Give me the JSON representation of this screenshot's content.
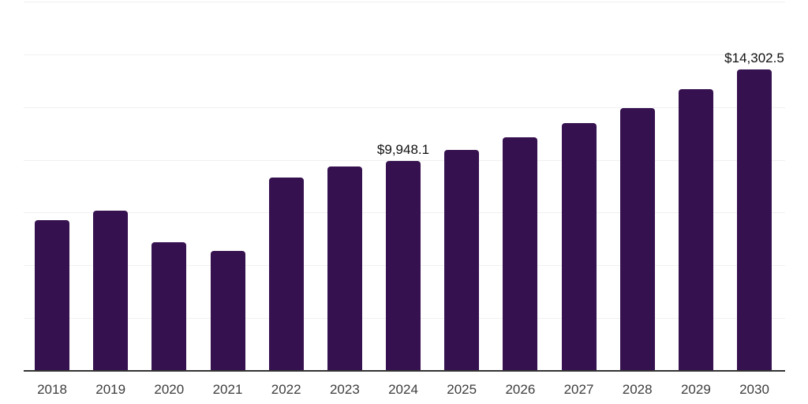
{
  "chart_data": {
    "type": "bar",
    "title": "",
    "xlabel": "",
    "ylabel": "",
    "categories": [
      "2018",
      "2019",
      "2020",
      "2021",
      "2022",
      "2023",
      "2024",
      "2025",
      "2026",
      "2027",
      "2028",
      "2029",
      "2030"
    ],
    "values": [
      7160,
      7610,
      6110,
      5700,
      9180,
      9700,
      9948.1,
      10490,
      11080,
      11760,
      12470,
      13360,
      14302.5
    ],
    "point_labels": [
      {
        "index": 6,
        "text": "$9,948.1"
      },
      {
        "index": 12,
        "text": "$14,302.5"
      }
    ],
    "ylim": [
      0,
      17500
    ],
    "gridline_interval": 2500,
    "grid": "horizontal-only",
    "legend": "none",
    "y_tick_labels_visible": false
  },
  "styles": {
    "bar_color": "#36114F",
    "grid_color": "#F0F0F0",
    "axis_color": "#333333",
    "tick_label_color": "#3D3D3D",
    "value_label_color": "#111111",
    "background": "#FFFFFF"
  }
}
